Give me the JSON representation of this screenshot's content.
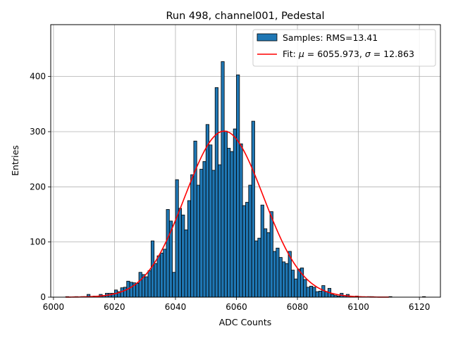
{
  "chart_data": {
    "type": "bar",
    "title": "Run 498, channel001, Pedestal",
    "xlabel": "ADC Counts",
    "ylabel": "Entries",
    "xlim": [
      5999.1,
      6126.9
    ],
    "ylim": [
      0,
      494
    ],
    "xticks": [
      6000,
      6020,
      6040,
      6060,
      6080,
      6100,
      6120
    ],
    "yticks": [
      0,
      100,
      200,
      300,
      400
    ],
    "grid": true,
    "legend_position": "top-right",
    "bar_color": "#1f77b4",
    "fit_color": "#ff0000",
    "bin_width": 1,
    "bins": [
      {
        "x": 6004,
        "y": 1
      },
      {
        "x": 6005,
        "y": 0
      },
      {
        "x": 6006,
        "y": 0
      },
      {
        "x": 6007,
        "y": 1
      },
      {
        "x": 6008,
        "y": 0
      },
      {
        "x": 6009,
        "y": 1
      },
      {
        "x": 6010,
        "y": 1
      },
      {
        "x": 6011,
        "y": 5
      },
      {
        "x": 6012,
        "y": 1
      },
      {
        "x": 6013,
        "y": 2
      },
      {
        "x": 6014,
        "y": 2
      },
      {
        "x": 6015,
        "y": 5
      },
      {
        "x": 6016,
        "y": 3
      },
      {
        "x": 6017,
        "y": 7
      },
      {
        "x": 6018,
        "y": 7
      },
      {
        "x": 6019,
        "y": 7
      },
      {
        "x": 6020,
        "y": 13
      },
      {
        "x": 6021,
        "y": 10
      },
      {
        "x": 6022,
        "y": 17
      },
      {
        "x": 6023,
        "y": 18
      },
      {
        "x": 6024,
        "y": 29
      },
      {
        "x": 6025,
        "y": 27
      },
      {
        "x": 6026,
        "y": 26
      },
      {
        "x": 6027,
        "y": 25
      },
      {
        "x": 6028,
        "y": 45
      },
      {
        "x": 6029,
        "y": 41
      },
      {
        "x": 6030,
        "y": 37
      },
      {
        "x": 6031,
        "y": 48
      },
      {
        "x": 6032,
        "y": 102
      },
      {
        "x": 6033,
        "y": 61
      },
      {
        "x": 6034,
        "y": 75
      },
      {
        "x": 6035,
        "y": 80
      },
      {
        "x": 6036,
        "y": 87
      },
      {
        "x": 6037,
        "y": 159
      },
      {
        "x": 6038,
        "y": 138
      },
      {
        "x": 6039,
        "y": 45
      },
      {
        "x": 6040,
        "y": 213
      },
      {
        "x": 6041,
        "y": 161
      },
      {
        "x": 6042,
        "y": 149
      },
      {
        "x": 6043,
        "y": 122
      },
      {
        "x": 6044,
        "y": 175
      },
      {
        "x": 6045,
        "y": 222
      },
      {
        "x": 6046,
        "y": 283
      },
      {
        "x": 6047,
        "y": 203
      },
      {
        "x": 6048,
        "y": 232
      },
      {
        "x": 6049,
        "y": 246
      },
      {
        "x": 6050,
        "y": 313
      },
      {
        "x": 6051,
        "y": 276
      },
      {
        "x": 6052,
        "y": 230
      },
      {
        "x": 6053,
        "y": 380
      },
      {
        "x": 6054,
        "y": 240
      },
      {
        "x": 6055,
        "y": 427
      },
      {
        "x": 6056,
        "y": 301
      },
      {
        "x": 6057,
        "y": 270
      },
      {
        "x": 6058,
        "y": 264
      },
      {
        "x": 6059,
        "y": 305
      },
      {
        "x": 6060,
        "y": 403
      },
      {
        "x": 6061,
        "y": 278
      },
      {
        "x": 6062,
        "y": 166
      },
      {
        "x": 6063,
        "y": 172
      },
      {
        "x": 6064,
        "y": 203
      },
      {
        "x": 6065,
        "y": 319
      },
      {
        "x": 6066,
        "y": 102
      },
      {
        "x": 6067,
        "y": 107
      },
      {
        "x": 6068,
        "y": 167
      },
      {
        "x": 6069,
        "y": 124
      },
      {
        "x": 6070,
        "y": 117
      },
      {
        "x": 6071,
        "y": 155
      },
      {
        "x": 6072,
        "y": 83
      },
      {
        "x": 6073,
        "y": 89
      },
      {
        "x": 6074,
        "y": 72
      },
      {
        "x": 6075,
        "y": 64
      },
      {
        "x": 6076,
        "y": 61
      },
      {
        "x": 6077,
        "y": 83
      },
      {
        "x": 6078,
        "y": 49
      },
      {
        "x": 6079,
        "y": 33
      },
      {
        "x": 6080,
        "y": 51
      },
      {
        "x": 6081,
        "y": 53
      },
      {
        "x": 6082,
        "y": 32
      },
      {
        "x": 6083,
        "y": 18
      },
      {
        "x": 6084,
        "y": 20
      },
      {
        "x": 6085,
        "y": 18
      },
      {
        "x": 6086,
        "y": 10
      },
      {
        "x": 6087,
        "y": 11
      },
      {
        "x": 6088,
        "y": 21
      },
      {
        "x": 6089,
        "y": 10
      },
      {
        "x": 6090,
        "y": 16
      },
      {
        "x": 6091,
        "y": 5
      },
      {
        "x": 6092,
        "y": 3
      },
      {
        "x": 6093,
        "y": 2
      },
      {
        "x": 6094,
        "y": 7
      },
      {
        "x": 6095,
        "y": 3
      },
      {
        "x": 6096,
        "y": 5
      },
      {
        "x": 6097,
        "y": 1
      },
      {
        "x": 6098,
        "y": 1
      },
      {
        "x": 6099,
        "y": 2
      },
      {
        "x": 6100,
        "y": 1
      },
      {
        "x": 6101,
        "y": 0
      },
      {
        "x": 6102,
        "y": 0
      },
      {
        "x": 6103,
        "y": 1
      },
      {
        "x": 6104,
        "y": 1
      },
      {
        "x": 6105,
        "y": 0
      },
      {
        "x": 6106,
        "y": 0
      },
      {
        "x": 6107,
        "y": 0
      },
      {
        "x": 6108,
        "y": 0
      },
      {
        "x": 6109,
        "y": 0
      },
      {
        "x": 6110,
        "y": 1
      },
      {
        "x": 6111,
        "y": 0
      },
      {
        "x": 6112,
        "y": 0
      },
      {
        "x": 6113,
        "y": 0
      },
      {
        "x": 6114,
        "y": 0
      },
      {
        "x": 6115,
        "y": 0
      },
      {
        "x": 6116,
        "y": 0
      },
      {
        "x": 6117,
        "y": 0
      },
      {
        "x": 6118,
        "y": 0
      },
      {
        "x": 6119,
        "y": 0
      },
      {
        "x": 6120,
        "y": 0
      },
      {
        "x": 6121,
        "y": 1
      }
    ],
    "fit": {
      "mu": 6055.973,
      "sigma": 12.863,
      "amplitude": 301,
      "x_range": [
        6004,
        6110
      ]
    },
    "legend": {
      "samples_label": "Samples: RMS=13.41",
      "fit_prefix": "Fit: ",
      "mu_symbol": "μ",
      "mu_text": " = 6055.973, ",
      "sigma_symbol": "σ",
      "sigma_text": " = 12.863"
    }
  }
}
